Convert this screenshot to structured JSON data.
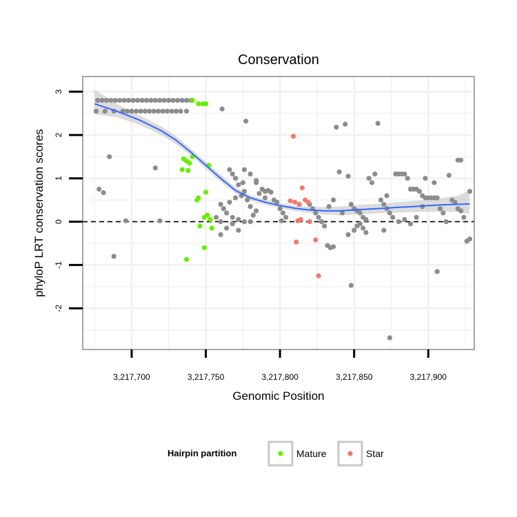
{
  "chart_data": {
    "type": "scatter",
    "title": "Conservation",
    "xlabel": "Genomic Position",
    "ylabel": "phyloP LRT conservation scores",
    "xlim": [
      3217667,
      3217931
    ],
    "ylim": [
      -2.95,
      3.35
    ],
    "x_ticks": [
      {
        "value": 3217700,
        "label": "3,217,700"
      },
      {
        "value": 3217750,
        "label": "3,217,750"
      },
      {
        "value": 3217800,
        "label": "3,217,800"
      },
      {
        "value": 3217850,
        "label": "3,217,850"
      },
      {
        "value": 3217900,
        "label": "3,217,900"
      }
    ],
    "y_ticks": [
      {
        "value": -2,
        "label": "-2"
      },
      {
        "value": -1,
        "label": "-1"
      },
      {
        "value": 0,
        "label": "0"
      },
      {
        "value": 1,
        "label": "1"
      },
      {
        "value": 2,
        "label": "2"
      },
      {
        "value": 3,
        "label": "3"
      }
    ],
    "reference_line": {
      "y": 0,
      "style": "dashed"
    },
    "legend": {
      "title": "Hairpin partition",
      "position": "bottom"
    },
    "colors": {
      "other": "#8c8c8c",
      "mature": "#66ee00",
      "star": "#f07a6e",
      "smooth": "#3366ff",
      "ribbon": "#c4c4c4",
      "panel_border": "#8a8a8a",
      "grid": "#f2f2f2"
    },
    "series": [
      {
        "name": "Other",
        "in_legend": false,
        "color_key": "other",
        "points": [
          [
            3217677,
            2.8
          ],
          [
            3217680,
            2.8
          ],
          [
            3217683,
            2.8
          ],
          [
            3217686,
            2.8
          ],
          [
            3217689,
            2.8
          ],
          [
            3217692,
            2.8
          ],
          [
            3217695,
            2.8
          ],
          [
            3217698,
            2.8
          ],
          [
            3217701,
            2.8
          ],
          [
            3217704,
            2.8
          ],
          [
            3217707,
            2.8
          ],
          [
            3217710,
            2.8
          ],
          [
            3217713,
            2.8
          ],
          [
            3217716,
            2.8
          ],
          [
            3217719,
            2.8
          ],
          [
            3217722,
            2.8
          ],
          [
            3217725,
            2.8
          ],
          [
            3217728,
            2.8
          ],
          [
            3217731,
            2.8
          ],
          [
            3217734,
            2.8
          ],
          [
            3217737,
            2.8
          ],
          [
            3217740,
            2.8
          ],
          [
            3217676,
            2.55
          ],
          [
            3217682,
            2.55
          ],
          [
            3217688,
            2.55
          ],
          [
            3217694,
            2.55
          ],
          [
            3217697,
            2.55
          ],
          [
            3217700,
            2.55
          ],
          [
            3217703,
            2.55
          ],
          [
            3217706,
            2.55
          ],
          [
            3217709,
            2.55
          ],
          [
            3217712,
            2.55
          ],
          [
            3217715,
            2.55
          ],
          [
            3217718,
            2.55
          ],
          [
            3217721,
            2.55
          ],
          [
            3217724,
            2.55
          ],
          [
            3217727,
            2.55
          ],
          [
            3217730,
            2.55
          ],
          [
            3217733,
            2.55
          ],
          [
            3217737,
            2.55
          ],
          [
            3217761,
            2.6
          ],
          [
            3217685,
            1.5
          ],
          [
            3217678,
            0.75
          ],
          [
            3217681,
            0.67
          ],
          [
            3217688,
            -0.8
          ],
          [
            3217696,
            0.02
          ],
          [
            3217716,
            1.24
          ],
          [
            3217719,
            0.02
          ],
          [
            3217766,
            1.2
          ],
          [
            3217768,
            1.1
          ],
          [
            3217770,
            1.0
          ],
          [
            3217772,
            0.85
          ],
          [
            3217760,
            0.4
          ],
          [
            3217762,
            0.3
          ],
          [
            3217764,
            0.2
          ],
          [
            3217766,
            0.45
          ],
          [
            3217768,
            0.1
          ],
          [
            3217770,
            0.55
          ],
          [
            3217772,
            0.05
          ],
          [
            3217774,
            0.6
          ],
          [
            3217776,
            0.7
          ],
          [
            3217778,
            0.5
          ],
          [
            3217780,
            0.35
          ],
          [
            3217782,
            0.15
          ],
          [
            3217784,
            0.25
          ],
          [
            3217786,
            0.65
          ],
          [
            3217788,
            0.75
          ],
          [
            3217790,
            0.7
          ],
          [
            3217792,
            0.72
          ],
          [
            3217794,
            0.68
          ],
          [
            3217796,
            0.5
          ],
          [
            3217798,
            0.45
          ],
          [
            3217800,
            0.3
          ],
          [
            3217802,
            0.2
          ],
          [
            3217804,
            0.1
          ],
          [
            3217801,
            0.02
          ],
          [
            3217776,
            1.2
          ],
          [
            3217780,
            1.1
          ],
          [
            3217784,
            0.9
          ],
          [
            3217777,
            2.32
          ],
          [
            3217784,
            0.95
          ],
          [
            3217760,
            -0.3
          ],
          [
            3217764,
            -0.15
          ],
          [
            3217768,
            -0.05
          ],
          [
            3217772,
            -0.2
          ],
          [
            3217776,
            0.0
          ],
          [
            3217780,
            0.0
          ],
          [
            3217775,
            0.9
          ],
          [
            3217790,
            0.55
          ],
          [
            3217757,
            0.1
          ],
          [
            3217760,
            0.0
          ],
          [
            3217820,
            0.4
          ],
          [
            3217822,
            0.3
          ],
          [
            3217824,
            0.2
          ],
          [
            3217826,
            0.1
          ],
          [
            3217828,
            0.0
          ],
          [
            3217830,
            -0.1
          ],
          [
            3217832,
            -0.55
          ],
          [
            3217834,
            -0.6
          ],
          [
            3217836,
            -0.58
          ],
          [
            3217833,
            0.35
          ],
          [
            3217836,
            0.5
          ],
          [
            3217838,
            2.18
          ],
          [
            3217840,
            1.15
          ],
          [
            3217842,
            0.2
          ],
          [
            3217844,
            2.25
          ],
          [
            3217846,
            1.05
          ],
          [
            3217848,
            0.4
          ],
          [
            3217850,
            0.3
          ],
          [
            3217852,
            0.25
          ],
          [
            3217854,
            0.2
          ],
          [
            3217856,
            0.1
          ],
          [
            3217858,
            0.05
          ],
          [
            3217846,
            -0.3
          ],
          [
            3217848,
            -1.47
          ],
          [
            3217850,
            -0.2
          ],
          [
            3217852,
            -0.1
          ],
          [
            3217854,
            -0.05
          ],
          [
            3217856,
            -0.15
          ],
          [
            3217858,
            -0.25
          ],
          [
            3217860,
            1.0
          ],
          [
            3217862,
            0.9
          ],
          [
            3217864,
            1.1
          ],
          [
            3217866,
            2.27
          ],
          [
            3217868,
            0.5
          ],
          [
            3217870,
            0.4
          ],
          [
            3217872,
            0.3
          ],
          [
            3217874,
            0.2
          ],
          [
            3217876,
            0.1
          ],
          [
            3217870,
            -0.2
          ],
          [
            3217872,
            0.6
          ],
          [
            3217874,
            -2.68
          ],
          [
            3217878,
            1.1
          ],
          [
            3217880,
            1.1
          ],
          [
            3217882,
            1.1
          ],
          [
            3217884,
            1.1
          ],
          [
            3217886,
            1.0
          ],
          [
            3217888,
            0.75
          ],
          [
            3217890,
            0.75
          ],
          [
            3217892,
            0.75
          ],
          [
            3217894,
            0.7
          ],
          [
            3217896,
            0.6
          ],
          [
            3217898,
            0.55
          ],
          [
            3217900,
            0.55
          ],
          [
            3217902,
            0.55
          ],
          [
            3217904,
            0.55
          ],
          [
            3217906,
            0.55
          ],
          [
            3217880,
            0.0
          ],
          [
            3217884,
            0.05
          ],
          [
            3217888,
            -0.05
          ],
          [
            3217892,
            0.1
          ],
          [
            3217896,
            0.35
          ],
          [
            3217898,
            1.0
          ],
          [
            3217904,
            0.9
          ],
          [
            3217906,
            -1.15
          ],
          [
            3217908,
            0.3
          ],
          [
            3217910,
            0.2
          ],
          [
            3217912,
            0.0
          ],
          [
            3217914,
            1.07
          ],
          [
            3217916,
            0.5
          ],
          [
            3217918,
            0.45
          ],
          [
            3217920,
            1.42
          ],
          [
            3217922,
            1.42
          ],
          [
            3217920,
            0.3
          ],
          [
            3217922,
            0.25
          ],
          [
            3217924,
            0.1
          ],
          [
            3217926,
            -0.45
          ],
          [
            3217928,
            -0.4
          ],
          [
            3217928,
            0.7
          ]
        ]
      },
      {
        "name": "Mature",
        "in_legend": true,
        "color_key": "mature",
        "points": [
          [
            3217741,
            2.8
          ],
          [
            3217745,
            2.72
          ],
          [
            3217748,
            2.72
          ],
          [
            3217750,
            2.72
          ],
          [
            3217735,
            1.45
          ],
          [
            3217737,
            1.4
          ],
          [
            3217739,
            1.35
          ],
          [
            3217741,
            1.5
          ],
          [
            3217734,
            1.2
          ],
          [
            3217738,
            1.18
          ],
          [
            3217752,
            1.3
          ],
          [
            3217744,
            0.5
          ],
          [
            3217745,
            0.55
          ],
          [
            3217750,
            0.68
          ],
          [
            3217749,
            0.1
          ],
          [
            3217751,
            0.15
          ],
          [
            3217753,
            0.05
          ],
          [
            3217746,
            -0.1
          ],
          [
            3217754,
            -0.15
          ],
          [
            3217749,
            -0.6
          ],
          [
            3217737,
            -0.87
          ]
        ]
      },
      {
        "name": "Star",
        "in_legend": true,
        "color_key": "star",
        "points": [
          [
            3217809,
            1.97
          ],
          [
            3217807,
            0.48
          ],
          [
            3217810,
            0.45
          ],
          [
            3217813,
            0.4
          ],
          [
            3217815,
            0.78
          ],
          [
            3217817,
            0.5
          ],
          [
            3217819,
            0.45
          ],
          [
            3217814,
            0.05
          ],
          [
            3217812,
            0.02
          ],
          [
            3217820,
            0.0
          ],
          [
            3217811,
            -0.47
          ],
          [
            3217824,
            -0.42
          ],
          [
            3217826,
            -1.25
          ]
        ]
      }
    ],
    "smooth_line": {
      "x": [
        3217675,
        3217690,
        3217705,
        3217720,
        3217730,
        3217740,
        3217750,
        3217760,
        3217770,
        3217780,
        3217790,
        3217800,
        3217810,
        3217820,
        3217830,
        3217840,
        3217850,
        3217860,
        3217870,
        3217880,
        3217890,
        3217900,
        3217910,
        3217920,
        3217928
      ],
      "y": [
        2.72,
        2.55,
        2.35,
        2.1,
        1.88,
        1.6,
        1.3,
        1.0,
        0.72,
        0.55,
        0.45,
        0.37,
        0.31,
        0.27,
        0.25,
        0.25,
        0.27,
        0.29,
        0.31,
        0.33,
        0.35,
        0.37,
        0.39,
        0.4,
        0.41
      ],
      "lower": [
        2.48,
        2.41,
        2.24,
        2.0,
        1.79,
        1.52,
        1.22,
        0.92,
        0.65,
        0.49,
        0.39,
        0.31,
        0.25,
        0.2,
        0.16,
        0.15,
        0.16,
        0.18,
        0.2,
        0.21,
        0.22,
        0.23,
        0.23,
        0.22,
        0.18
      ],
      "upper": [
        3.05,
        2.72,
        2.46,
        2.2,
        1.97,
        1.68,
        1.38,
        1.08,
        0.79,
        0.61,
        0.51,
        0.43,
        0.37,
        0.34,
        0.34,
        0.35,
        0.38,
        0.4,
        0.42,
        0.45,
        0.48,
        0.51,
        0.55,
        0.6,
        0.72
      ]
    }
  }
}
